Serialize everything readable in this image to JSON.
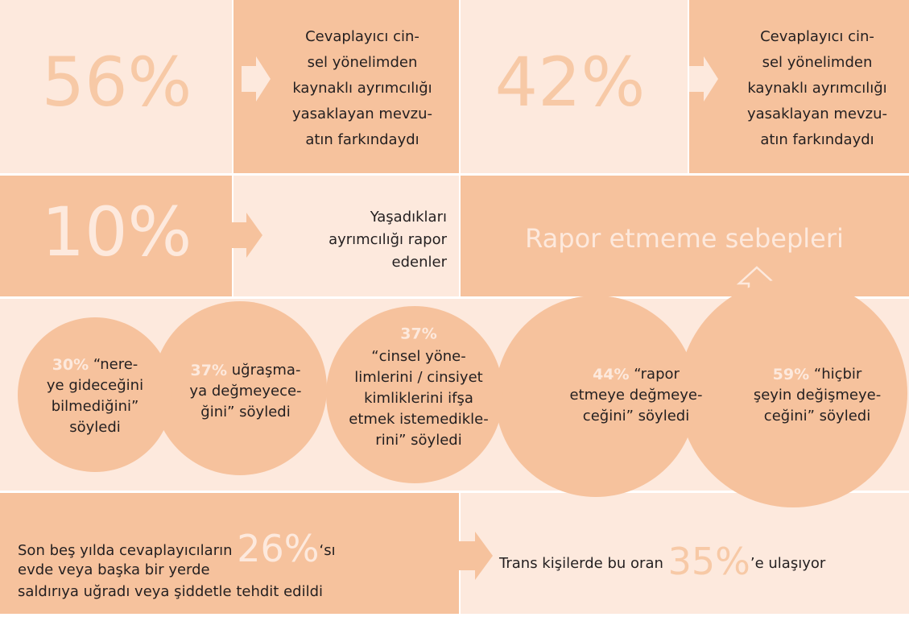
{
  "row1": [
    {
      "percent": "56%",
      "lines": [
        "Cevaplayıcı cin-",
        "sel yönelimden",
        "kaynaklı ayrımcılığı",
        "yasaklayan mevzu-",
        "atın farkındaydı"
      ]
    },
    {
      "percent": "42%",
      "lines": [
        "Cevaplayıcı cin-",
        "sel yönelimden",
        "kaynaklı ayrımcılığı",
        "yasaklayan mevzu-",
        "atın farkındaydı"
      ]
    }
  ],
  "row2": {
    "percent": "10%",
    "lines": [
      "Yaşadıkları",
      "ayrımcılığı rapor",
      "edenler"
    ],
    "heading": "Rapor etmeme sebepleri"
  },
  "reasons": [
    {
      "percent": "30%",
      "lines": [
        "“nere-",
        "ye gideceğini",
        "bilmediğini”",
        "söyledi"
      ]
    },
    {
      "percent": "37%",
      "lines": [
        "uğraşma-",
        "ya değmeyece-",
        "ğini” söyledi"
      ]
    },
    {
      "percent": "37%",
      "lines": [
        "“cinsel yöne-",
        "limlerini / cinsiyet",
        "kimliklerini ifşa",
        "etmek istemedikle-",
        "rini” söyledi"
      ]
    },
    {
      "percent": "44%",
      "lines": [
        "“rapor",
        "etmeye değmeye-",
        "ceğini” söyledi"
      ]
    },
    {
      "percent": "59%",
      "lines": [
        "“hiçbir",
        "şeyin değişmeye-",
        "ceğini” söyledi"
      ]
    }
  ],
  "footer": {
    "left": {
      "before": "Son beş yılda cevaplayıcıların",
      "percent": "26%",
      "after": "‘sı",
      "lines": [
        "evde veya başka bir yerde",
        "saldırıya uğradı veya şiddetle tehdit edildi"
      ]
    },
    "right": {
      "before": "Trans kişilerde bu oran",
      "percent": "35%",
      "after": "’e ulaşıyor"
    }
  }
}
